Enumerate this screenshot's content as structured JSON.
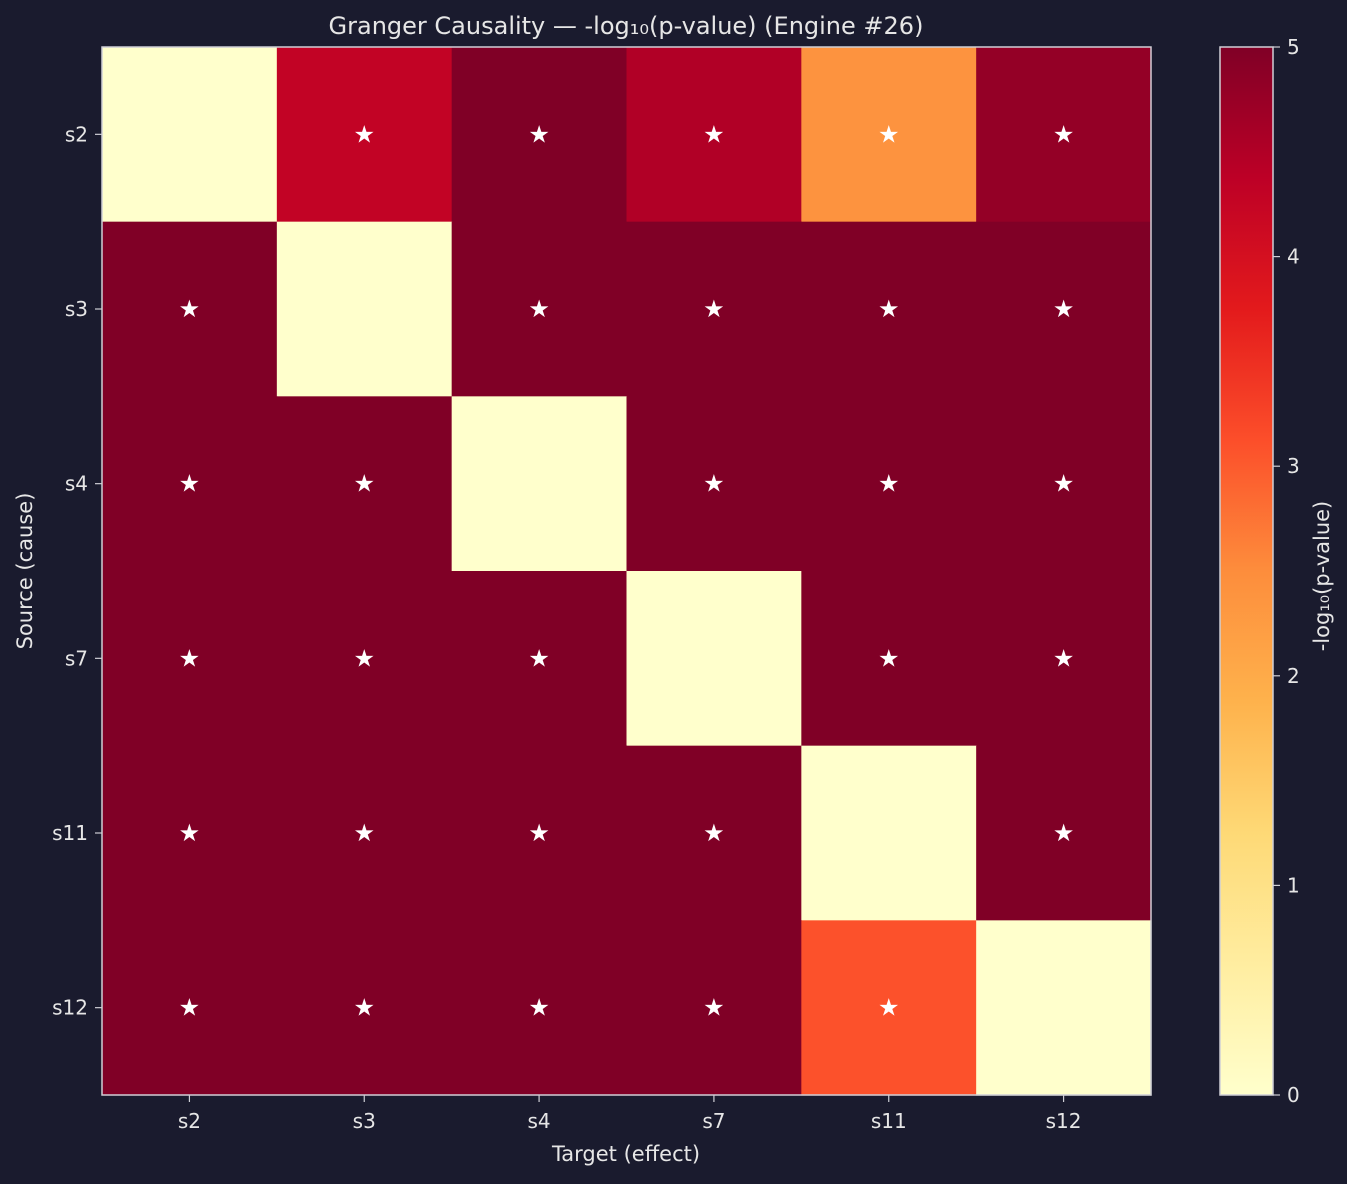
{
  "chart_data": {
    "type": "heatmap",
    "title": "Granger Causality — -log₁₀(p-value) (Engine #26)",
    "xlabel": "Target (effect)",
    "ylabel": "Source (cause)",
    "x_categories": [
      "s2",
      "s3",
      "s4",
      "s7",
      "s11",
      "s12"
    ],
    "y_categories": [
      "s2",
      "s3",
      "s4",
      "s7",
      "s11",
      "s12"
    ],
    "values": [
      [
        0,
        4.3,
        5,
        4.5,
        2.4,
        4.8
      ],
      [
        5,
        0,
        5,
        5,
        5,
        5
      ],
      [
        5,
        5,
        0,
        5,
        5,
        5
      ],
      [
        5,
        5,
        5,
        0,
        5,
        5
      ],
      [
        5,
        5,
        5,
        5,
        0,
        5
      ],
      [
        5,
        5,
        5,
        5,
        3.1,
        0
      ]
    ],
    "significant": [
      [
        false,
        true,
        true,
        true,
        true,
        true
      ],
      [
        true,
        false,
        true,
        true,
        true,
        true
      ],
      [
        true,
        true,
        false,
        true,
        true,
        true
      ],
      [
        true,
        true,
        true,
        false,
        true,
        true
      ],
      [
        true,
        true,
        true,
        true,
        false,
        true
      ],
      [
        true,
        true,
        true,
        true,
        true,
        false
      ]
    ],
    "marker_symbol": "★",
    "colorscale": "YlOrRd",
    "vmin": 0,
    "vmax": 5,
    "colorbar": {
      "label": "-log₁₀(p-value)",
      "ticks": [
        "0",
        "1",
        "2",
        "3",
        "4",
        "5"
      ]
    },
    "colors": {
      "background": "#1a1b2e",
      "text": "#e6e6e6",
      "marker": "#ffffff",
      "frame": "#cfcfd6"
    }
  }
}
